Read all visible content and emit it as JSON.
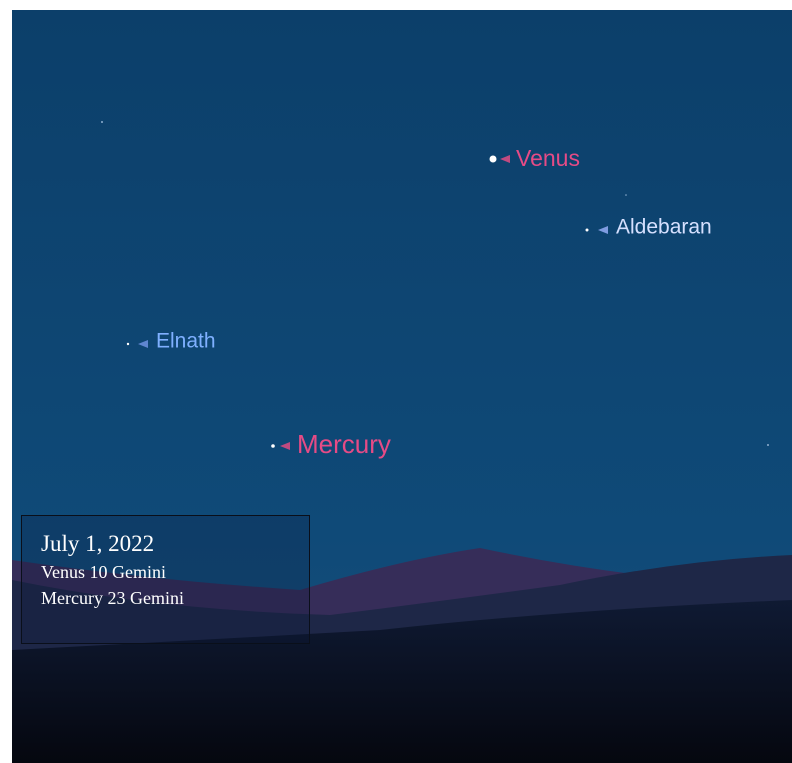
{
  "sky_labels": {
    "venus": "Venus",
    "aldebaran": "Aldebaran",
    "elnath": "Elnath",
    "mercury": "Mercury"
  },
  "caption": {
    "date": "July 1, 2022",
    "lines": [
      "Venus 10 Gemini",
      "Mercury 23 Gemini"
    ]
  }
}
